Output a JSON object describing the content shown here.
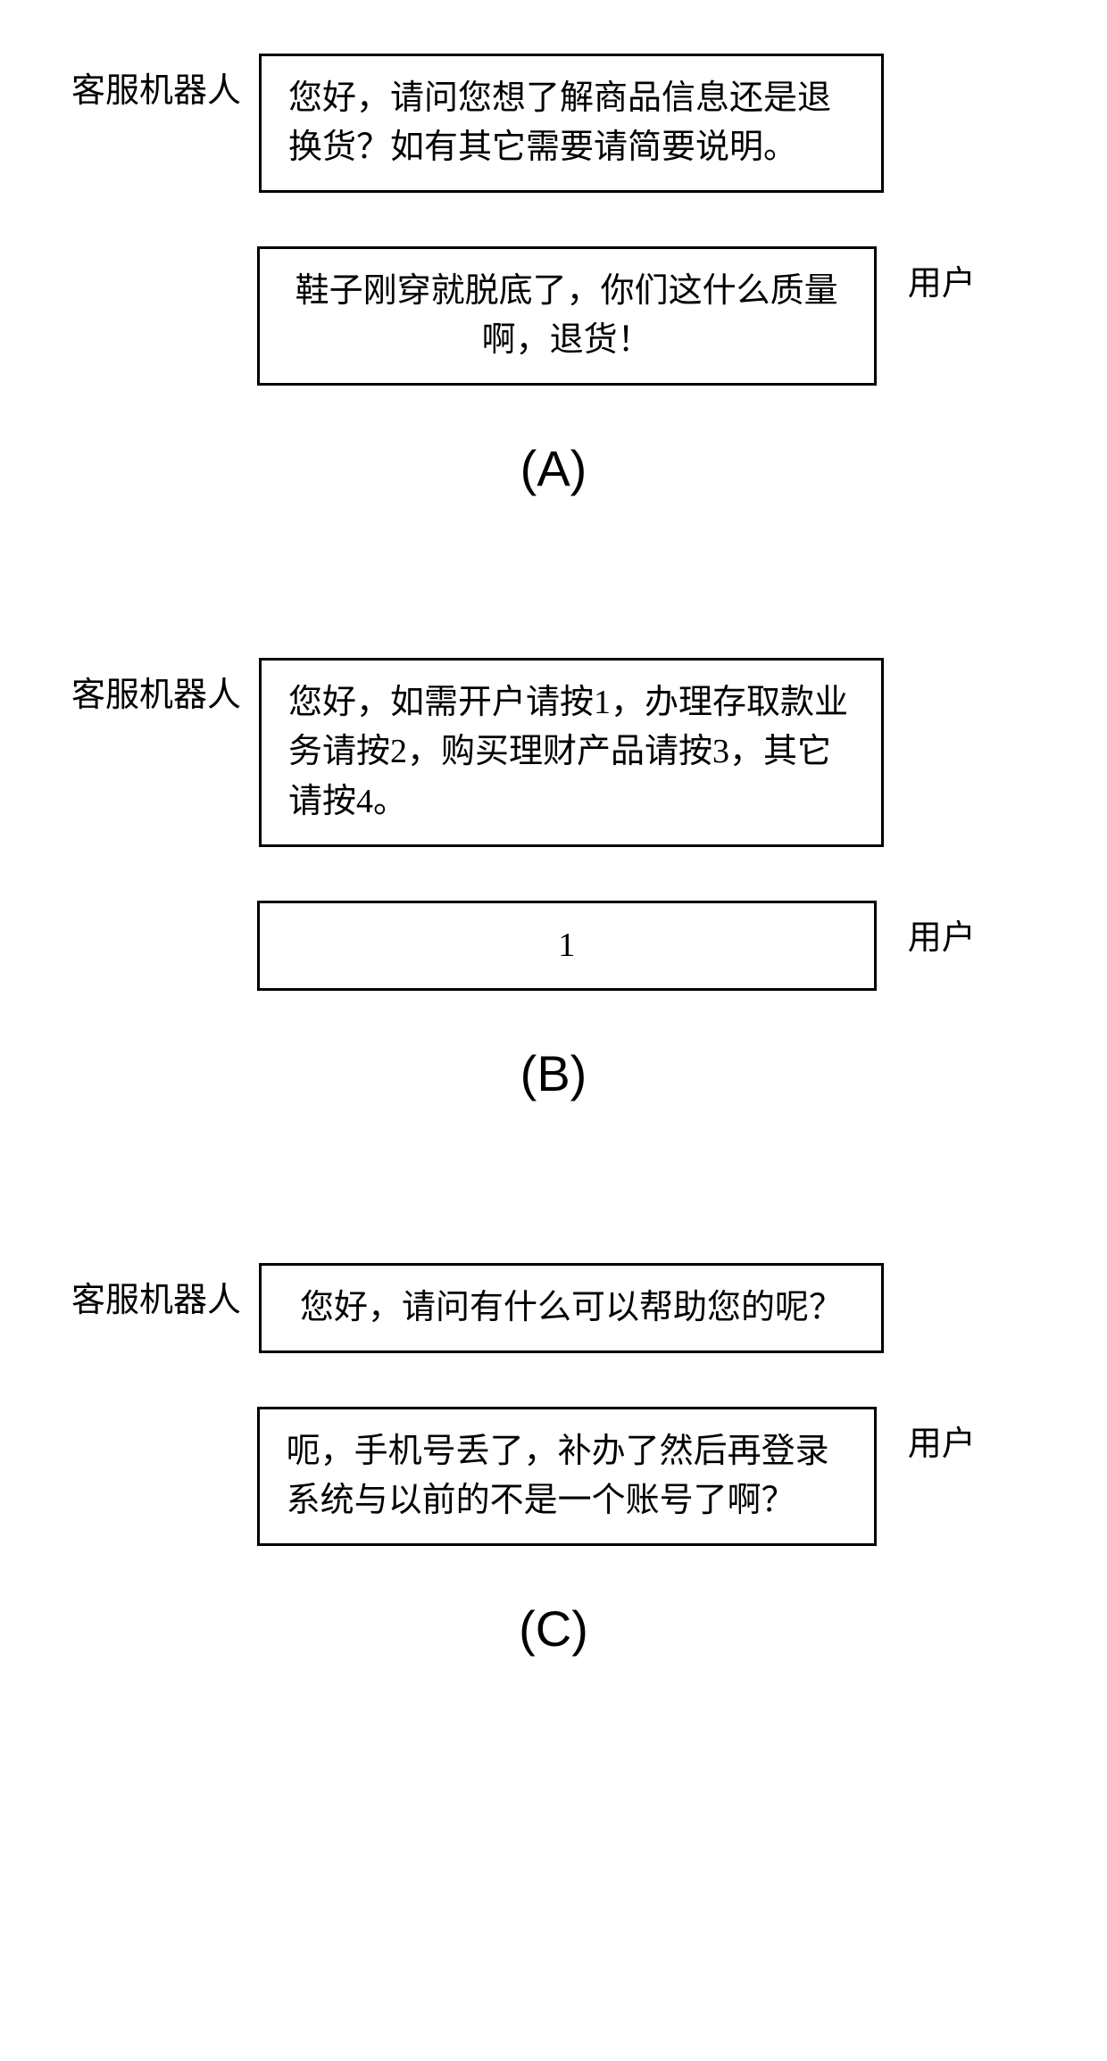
{
  "colors": {
    "background": "#ffffff",
    "border": "#000000",
    "text": "#000000"
  },
  "typography": {
    "message_fontsize": 38,
    "label_fontsize": 38,
    "scenario_label_fontsize": 56,
    "font_family_main": "SimSun",
    "font_family_label": "Arial"
  },
  "layout": {
    "message_box_width": 700,
    "label_left_width": 250,
    "label_right_width": 220,
    "border_width": 3,
    "scenario_gap": 180
  },
  "labels": {
    "bot": "客服机器人",
    "user": "用户"
  },
  "scenarios": [
    {
      "id": "A",
      "label": "(A)",
      "bot_message": "您好，请问您想了解商品信息还是退换货？如有其它需要请简要说明。",
      "user_message": "鞋子刚穿就脱底了，你们这什么质量啊，退货！"
    },
    {
      "id": "B",
      "label": "(B)",
      "bot_message": "您好，如需开户请按1，办理存取款业务请按2，购买理财产品请按3，其它请按4。",
      "user_message": "1"
    },
    {
      "id": "C",
      "label": "(C)",
      "bot_message": "您好，请问有什么可以帮助您的呢？",
      "user_message": "呃，手机号丢了，补办了然后再登录系统与以前的不是一个账号了啊？"
    }
  ]
}
